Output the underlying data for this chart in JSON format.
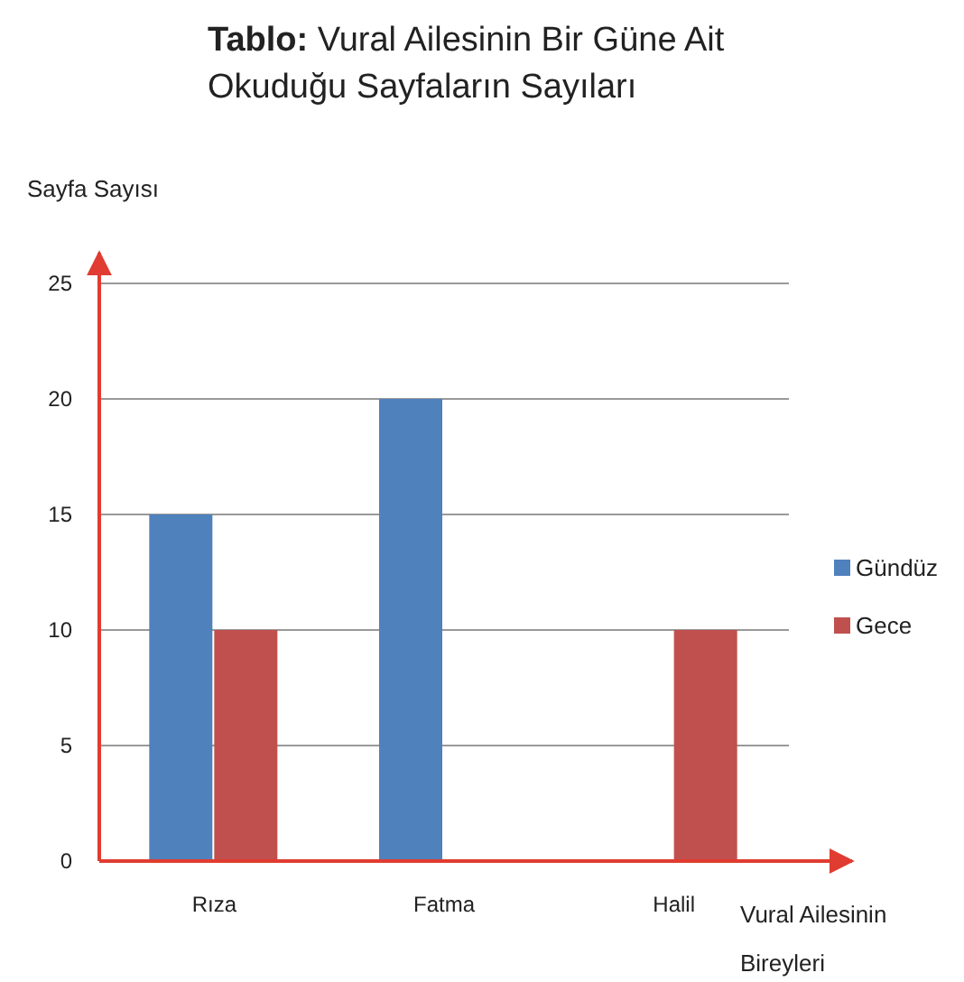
{
  "chart_data": {
    "type": "bar",
    "title": "Tablo: Vural Ailesinin Bir Güne Ait Okuduğu Sayfaların Sayıları",
    "xlabel": "Vural Ailesinin Bireyleri",
    "ylabel": "Sayfa Sayısı",
    "categories": [
      "Rıza",
      "Fatma",
      "Halil"
    ],
    "series": [
      {
        "name": "Gündüz",
        "color": "#4f81bd",
        "values": [
          15,
          20,
          0
        ]
      },
      {
        "name": "Gece",
        "color": "#c0504d",
        "values": [
          10,
          0,
          10
        ]
      }
    ],
    "ylim": [
      0,
      25
    ],
    "yticks": [
      0,
      5,
      10,
      15,
      20,
      25
    ],
    "grid": "y",
    "legend": "right"
  }
}
